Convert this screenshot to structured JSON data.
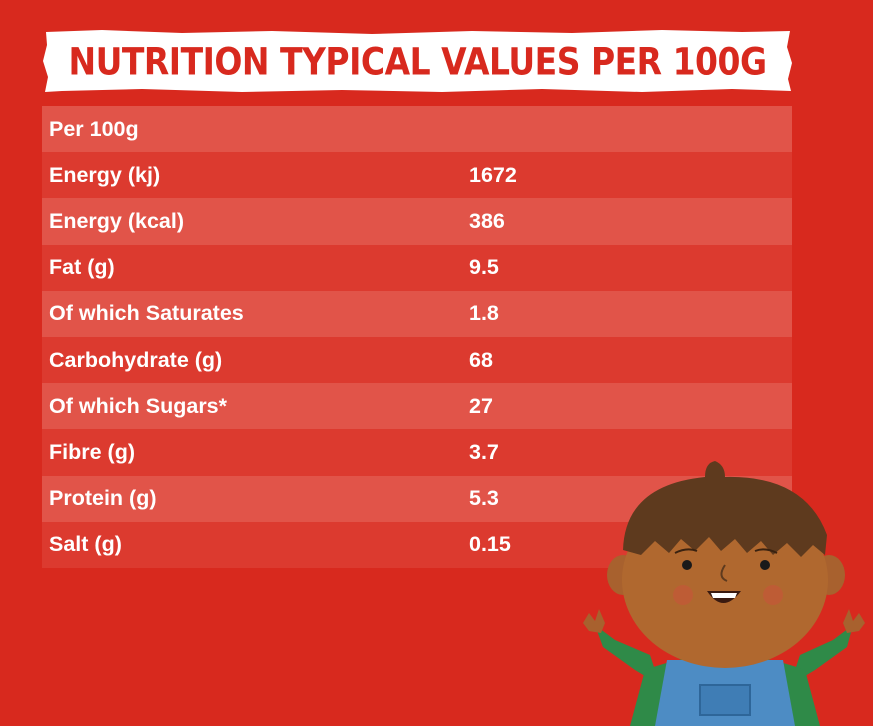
{
  "title": "NUTRITION TYPICAL VALUES PER 100G",
  "table": {
    "header": "Per 100g",
    "rows": [
      {
        "label": "Energy (kj)",
        "value": "1672"
      },
      {
        "label": "Energy (kcal)",
        "value": "386"
      },
      {
        "label": "Fat (g)",
        "value": "9.5"
      },
      {
        "label": "Of which Saturates",
        "value": "1.8"
      },
      {
        "label": "Carbohydrate (g)",
        "value": "68"
      },
      {
        "label": "Of which Sugars*",
        "value": "27"
      },
      {
        "label": "Fibre (g)",
        "value": "3.7"
      },
      {
        "label": "Protein (g)",
        "value": "5.3"
      },
      {
        "label": "Salt (g)",
        "value": "0.15"
      }
    ]
  },
  "colors": {
    "background": "#d8291e",
    "row_light": "#e15449",
    "row_dark": "#dc3a2f",
    "banner": "#ffffff"
  }
}
